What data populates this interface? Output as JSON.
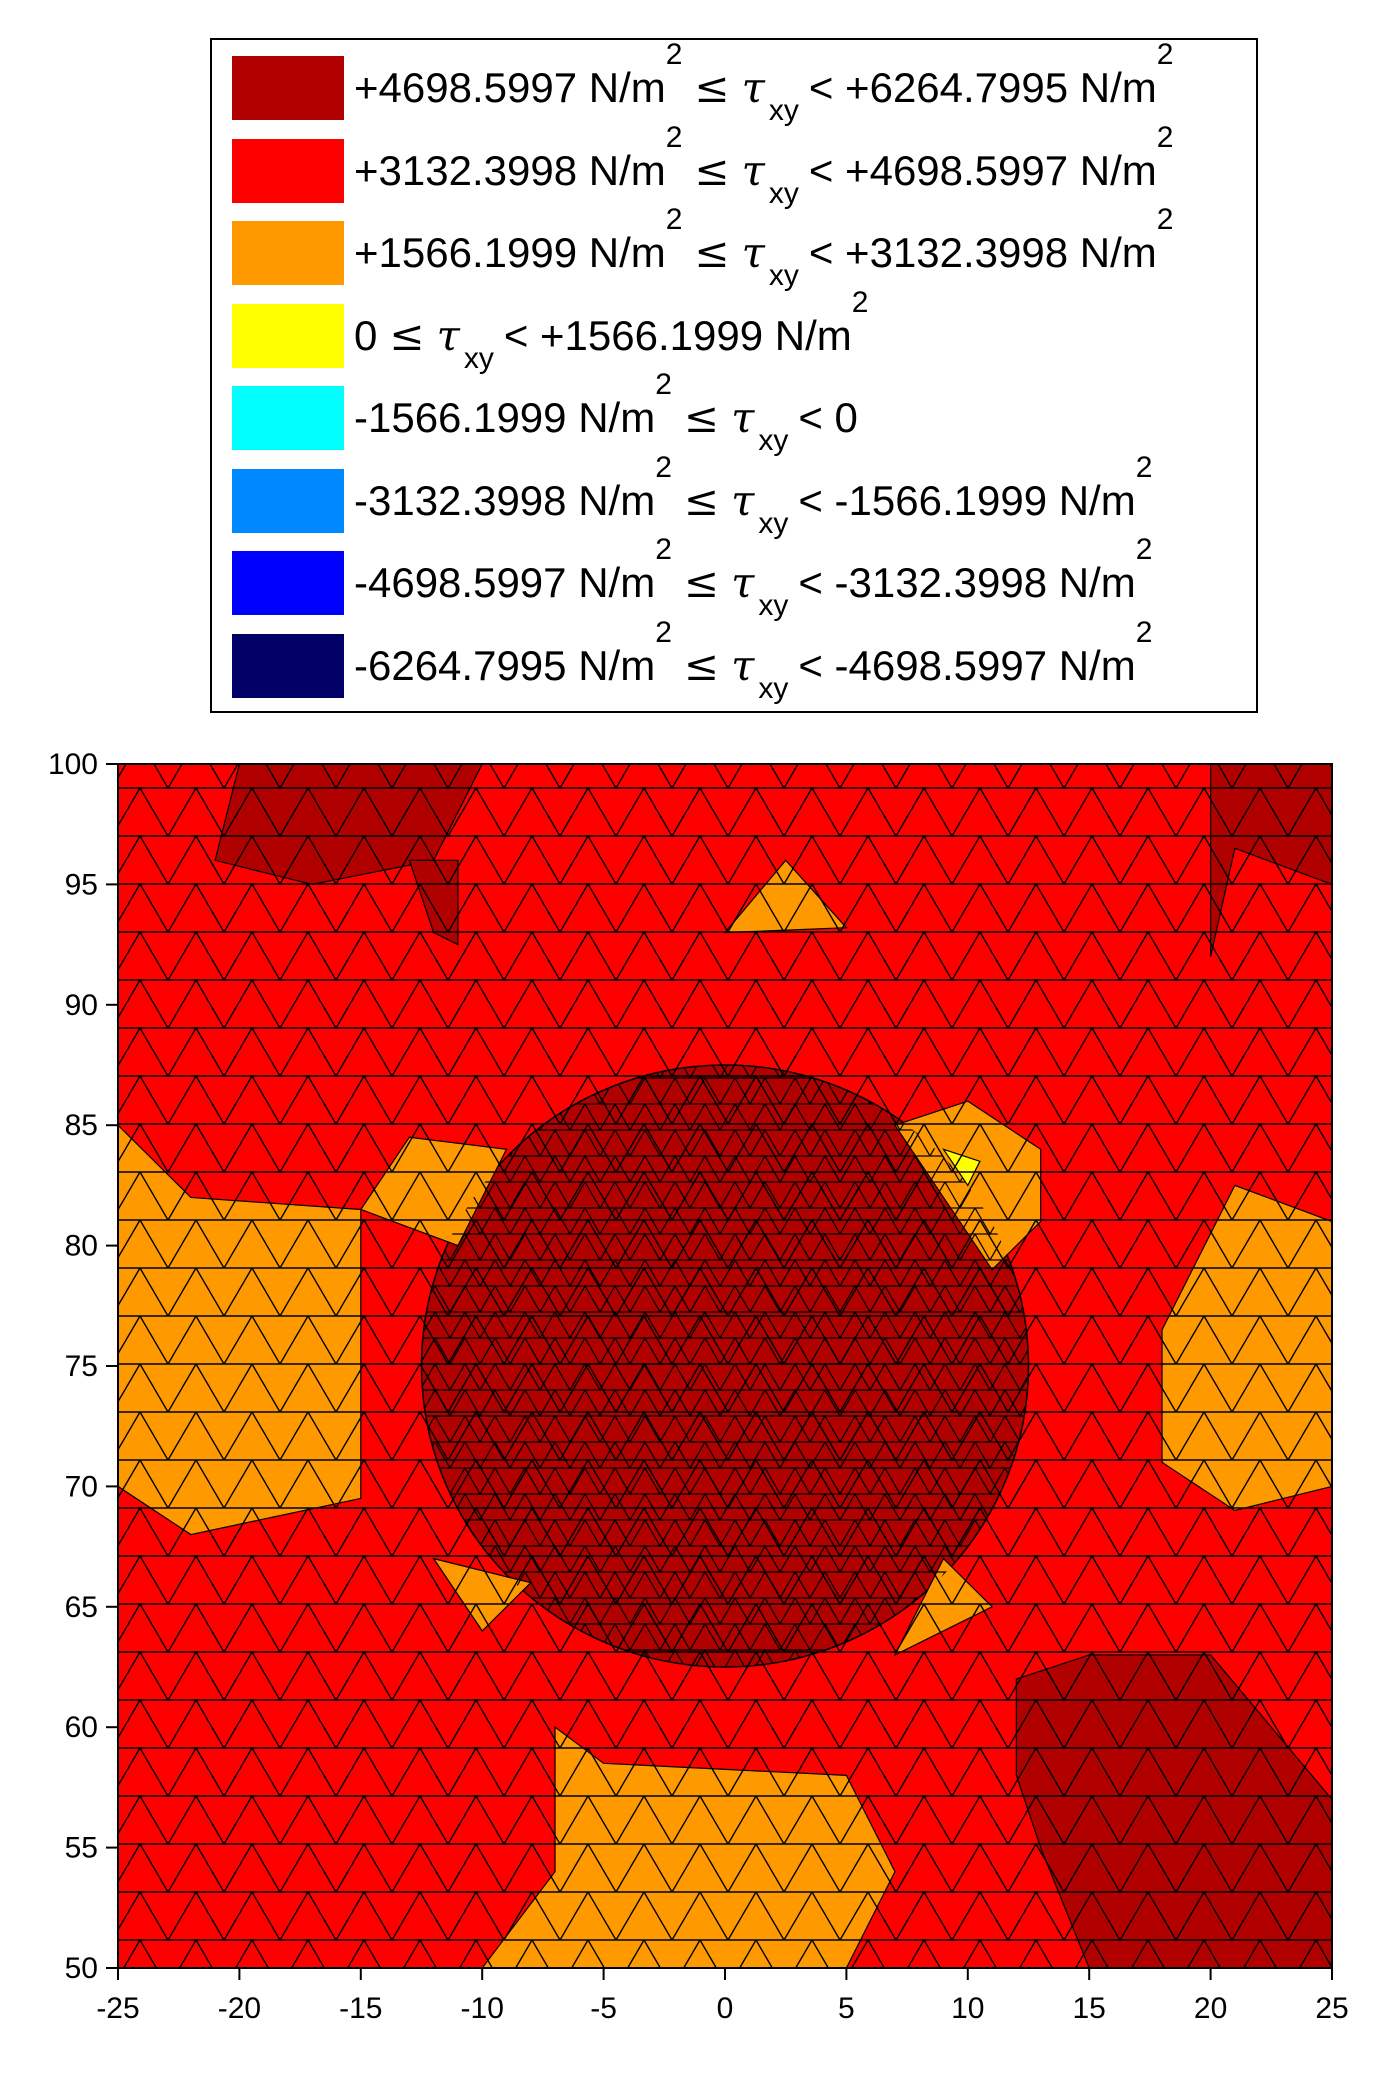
{
  "chart_data": {
    "type": "heatmap",
    "title": "",
    "xlabel": "",
    "ylabel": "",
    "xlim": [
      -25,
      25
    ],
    "ylim": [
      50,
      100
    ],
    "x_ticks": [
      "-25",
      "-20",
      "-15",
      "-10",
      "-5",
      "0",
      "5",
      "10",
      "15",
      "20",
      "25"
    ],
    "y_ticks": [
      "100",
      "95",
      "90",
      "85",
      "80",
      "75",
      "70",
      "65",
      "60",
      "55",
      "50"
    ],
    "legend": [
      {
        "color": "#B00000",
        "low": "+4698.5997 N/m",
        "high": "< +6264.7995 N/m"
      },
      {
        "color": "#FF0000",
        "low": "+3132.3998 N/m",
        "high": "< +4698.5997 N/m"
      },
      {
        "color": "#FF9900",
        "low": "+1566.1999 N/m",
        "high": "< +3132.3998 N/m"
      },
      {
        "color": "#FFFF00",
        "low": "0",
        "high": "< +1566.1999 N/m"
      },
      {
        "color": "#00FFFF",
        "low": "-1566.1999 N/m",
        "high": "< 0"
      },
      {
        "color": "#0088FF",
        "low": "-3132.3998 N/m",
        "high": "< -1566.1999 N/m"
      },
      {
        "color": "#0000FF",
        "low": "-4698.5997 N/m",
        "high": "< -3132.3998 N/m"
      },
      {
        "color": "#000066",
        "low": "-6264.7995 N/m",
        "high": "< -4698.5997 N/m"
      }
    ],
    "symbol": "τ",
    "subscript": "xy",
    "le": "≤",
    "sq": "2",
    "regions": [
      {
        "name": "background",
        "level": 1,
        "shape": "rect",
        "x": [
          -25,
          25
        ],
        "y": [
          50,
          100
        ]
      },
      {
        "name": "inclusion",
        "level": 0,
        "shape": "circle",
        "center": [
          0,
          75
        ],
        "radius": 12.5
      },
      {
        "name": "left-band",
        "level": 2,
        "shape": "polygon",
        "points": [
          [
            -25,
            85
          ],
          [
            -22,
            82
          ],
          [
            -15,
            81.5
          ],
          [
            -15,
            69.5
          ],
          [
            -22,
            68
          ],
          [
            -25,
            70
          ]
        ]
      },
      {
        "name": "right-band",
        "level": 2,
        "shape": "polygon",
        "points": [
          [
            25,
            81
          ],
          [
            21,
            82.5
          ],
          [
            18,
            76.5
          ],
          [
            18,
            71
          ],
          [
            21,
            69
          ],
          [
            25,
            70
          ]
        ]
      },
      {
        "name": "bottom-band",
        "level": 2,
        "shape": "polygon",
        "points": [
          [
            -10,
            50
          ],
          [
            5,
            50
          ],
          [
            7,
            54
          ],
          [
            5,
            58
          ],
          [
            -5,
            58.5
          ],
          [
            -7,
            60
          ],
          [
            -7,
            54
          ]
        ]
      },
      {
        "name": "top-notch",
        "level": 2,
        "shape": "polygon",
        "points": [
          [
            0,
            93
          ],
          [
            2.5,
            96
          ],
          [
            5,
            93.2
          ]
        ]
      },
      {
        "name": "upper-left-ring",
        "level": 2,
        "shape": "polygon",
        "points": [
          [
            -13,
            84.5
          ],
          [
            -9,
            84
          ],
          [
            -11,
            80
          ],
          [
            -15,
            81.5
          ]
        ]
      },
      {
        "name": "upper-right-ring",
        "level": 2,
        "shape": "polygon",
        "points": [
          [
            7,
            85
          ],
          [
            10,
            86
          ],
          [
            13,
            84
          ],
          [
            13,
            81
          ],
          [
            11,
            79
          ],
          [
            9,
            82
          ]
        ]
      },
      {
        "name": "lower-left-ring",
        "level": 2,
        "shape": "polygon",
        "points": [
          [
            -12,
            67
          ],
          [
            -10,
            64
          ],
          [
            -8,
            66
          ]
        ]
      },
      {
        "name": "lower-right-ring",
        "level": 2,
        "shape": "polygon",
        "points": [
          [
            9,
            67
          ],
          [
            11,
            65
          ],
          [
            7,
            63
          ]
        ]
      },
      {
        "name": "top-dark-left",
        "level": 0,
        "shape": "polygon",
        "points": [
          [
            -20,
            100
          ],
          [
            -10,
            100
          ],
          [
            -12,
            96
          ],
          [
            -17,
            95
          ],
          [
            -21,
            96
          ]
        ]
      },
      {
        "name": "top-dark-mid",
        "level": 0,
        "shape": "polygon",
        "points": [
          [
            -13,
            96
          ],
          [
            -12,
            93
          ],
          [
            -11,
            92.5
          ],
          [
            -11,
            96
          ]
        ]
      },
      {
        "name": "top-dark-right",
        "level": 0,
        "shape": "polygon",
        "points": [
          [
            20,
            100
          ],
          [
            25,
            100
          ],
          [
            25,
            95
          ],
          [
            21,
            96.5
          ],
          [
            20,
            92
          ]
        ]
      },
      {
        "name": "bottom-right-dark",
        "level": 0,
        "shape": "polygon",
        "points": [
          [
            12,
            62
          ],
          [
            15,
            63
          ],
          [
            20,
            63
          ],
          [
            25,
            57
          ],
          [
            25,
            50
          ],
          [
            15,
            50
          ],
          [
            13,
            55
          ],
          [
            12,
            58
          ]
        ]
      },
      {
        "name": "yellow-cell",
        "level": 3,
        "shape": "polygon",
        "points": [
          [
            9,
            84
          ],
          [
            10.5,
            83.5
          ],
          [
            10,
            82.5
          ]
        ]
      }
    ]
  }
}
